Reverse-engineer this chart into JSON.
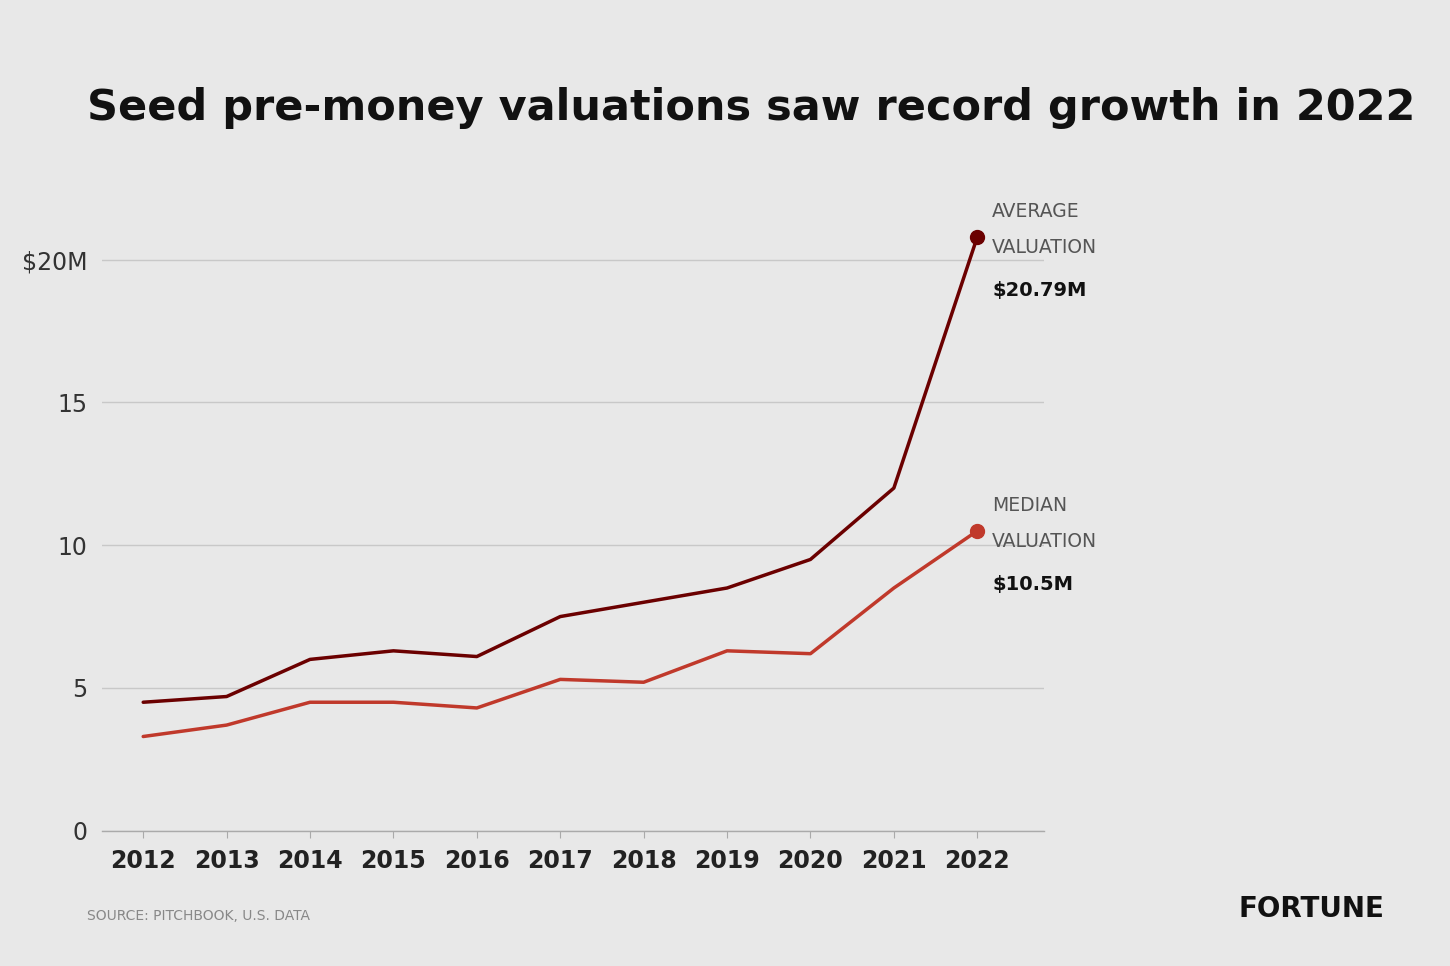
{
  "title": "Seed pre-money valuations saw record growth in 2022",
  "years": [
    2012,
    2013,
    2014,
    2015,
    2016,
    2017,
    2018,
    2019,
    2020,
    2021,
    2022
  ],
  "average_values": [
    4.5,
    4.7,
    6.0,
    6.3,
    6.1,
    7.5,
    8.0,
    8.5,
    9.5,
    12.0,
    20.79
  ],
  "median_values": [
    3.3,
    3.7,
    4.5,
    4.5,
    4.3,
    5.3,
    5.2,
    6.3,
    6.2,
    8.5,
    10.5
  ],
  "average_color": "#6b0000",
  "median_color": "#c0392b",
  "yticks": [
    0,
    5,
    10,
    15,
    20
  ],
  "ytick_labels": [
    "0",
    "5",
    "10",
    "15",
    "$20M"
  ],
  "ylim": [
    0,
    23
  ],
  "xlim": [
    2011.5,
    2022.8
  ],
  "background_color": "#e8e8e8",
  "grid_color": "#c8c8c8",
  "source_text": "SOURCE: PITCHBOOK, U.S. DATA",
  "fortune_text": "FORTUNE",
  "avg_label_line1": "AVERAGE",
  "avg_label_line2": "VALUATION",
  "avg_label_value": "$20.79M",
  "med_label_line1": "MEDIAN",
  "med_label_line2": "VALUATION",
  "med_label_value": "$10.5M"
}
